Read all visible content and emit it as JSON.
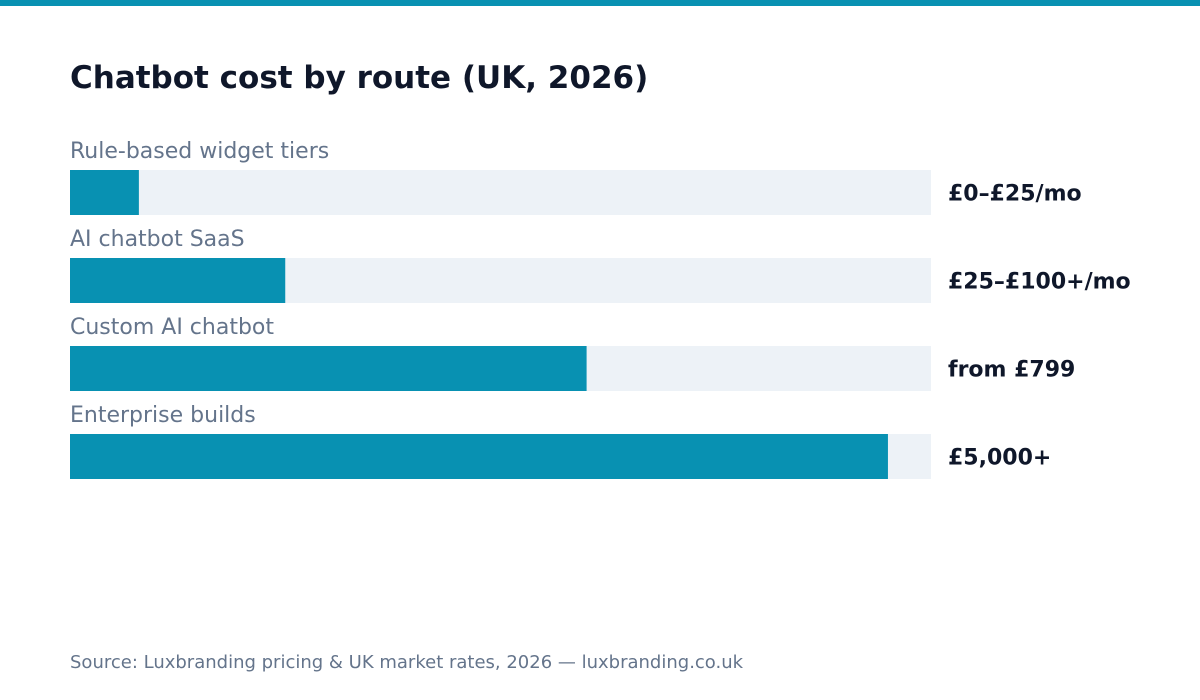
{
  "colors": {
    "accent": "#0891b2",
    "track": "#edf2f7",
    "title": "#0f172a",
    "muted": "#64748b"
  },
  "chart_data": {
    "type": "bar",
    "orientation": "horizontal",
    "title": "Chatbot cost by route (UK, 2026)",
    "categories": [
      "Rule-based widget tiers",
      "AI chatbot SaaS",
      "Custom AI chatbot",
      "Enterprise builds"
    ],
    "value_labels": [
      "£0–£25/mo",
      "£25–£100+/mo",
      "from £799",
      "£5,000+"
    ],
    "relative_bar_fill": [
      0.08,
      0.25,
      0.6,
      0.95
    ],
    "xlim": [
      0,
      1
    ],
    "grid": false,
    "legend": "none"
  },
  "footer": {
    "source": "Source: Luxbranding pricing & UK market rates, 2026 — luxbranding.co.uk"
  }
}
